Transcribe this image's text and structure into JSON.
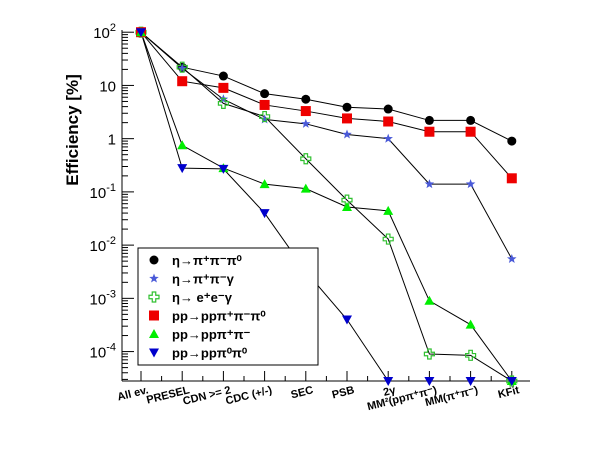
{
  "chart_data": {
    "type": "line",
    "ylabel": "Efficiency [%]",
    "yscale": "log",
    "ylim": [
      2.8e-05,
      110
    ],
    "yticks": [
      {
        "value": 100,
        "base": "10",
        "exp": "2"
      },
      {
        "value": 10,
        "base": "10",
        "exp": ""
      },
      {
        "value": 1,
        "base": "1",
        "exp": ""
      },
      {
        "value": 0.1,
        "base": "10",
        "exp": "-1"
      },
      {
        "value": 0.01,
        "base": "10",
        "exp": "-2"
      },
      {
        "value": 0.001,
        "base": "10",
        "exp": "-3"
      },
      {
        "value": 0.0001,
        "base": "10",
        "exp": "-4"
      }
    ],
    "categories": [
      {
        "main": "All ev.",
        "sup": ""
      },
      {
        "main": "PRESEL",
        "sup": ""
      },
      {
        "main": "CDN >= 2",
        "sup": ""
      },
      {
        "main": "CDC (+/-)",
        "sup": ""
      },
      {
        "main": "SEC",
        "sup": ""
      },
      {
        "main": "PSB",
        "sup": ""
      },
      {
        "main": "2γ",
        "sup": ""
      },
      {
        "main": "MM²(ppπ⁺π⁻)",
        "sup": ""
      },
      {
        "main": "MM(π⁺π⁻)",
        "sup": ""
      },
      {
        "main": "KFit",
        "sup": ""
      }
    ],
    "series": [
      {
        "name": "η→π⁺π⁻π⁰",
        "marker": "circle",
        "color": "#000000",
        "values": [
          100,
          22,
          15,
          7,
          5.5,
          3.9,
          3.6,
          2.2,
          2.2,
          0.9
        ]
      },
      {
        "name": "η→π⁺π⁻γ",
        "marker": "star",
        "color": "#4a5ad8",
        "values": [
          100,
          21,
          5.5,
          2.3,
          1.9,
          1.2,
          1.0,
          0.14,
          0.14,
          0.0055
        ]
      },
      {
        "name": "η→ e⁺e⁻γ",
        "marker": "cross-open",
        "color": "#30c030",
        "values": [
          100,
          22,
          4.6,
          2.6,
          0.42,
          0.07,
          0.013,
          9e-05,
          8.5e-05,
          2.8e-05
        ]
      },
      {
        "name": "pp→ppπ⁺π⁻π⁰",
        "marker": "square",
        "color": "#ee0000",
        "values": [
          100,
          12,
          9,
          4.3,
          3.3,
          2.4,
          2.1,
          1.35,
          1.35,
          0.18
        ]
      },
      {
        "name": "pp→ppπ⁺π⁻",
        "marker": "triangle-up",
        "color": "#00ee00",
        "values": [
          100,
          0.75,
          0.28,
          0.14,
          0.115,
          0.052,
          0.044,
          0.0009,
          0.00032,
          2.8e-05
        ]
      },
      {
        "name": "pp→ppπ⁰π⁰",
        "marker": "triangle-down",
        "color": "#0000cc",
        "values": [
          100,
          0.28,
          0.27,
          0.04,
          0.0032,
          0.0004,
          2.8e-05,
          2.8e-05,
          2.8e-05,
          2.8e-05
        ]
      }
    ],
    "legend_position": "bottom-left"
  }
}
